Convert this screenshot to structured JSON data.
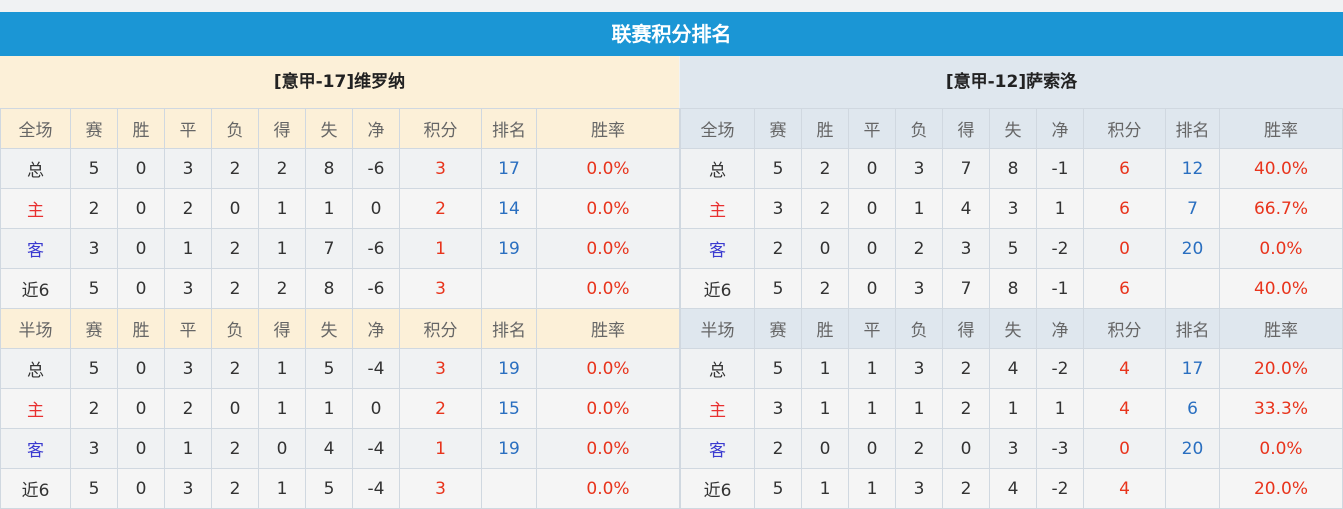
{
  "title": "联赛积分排名",
  "teams": [
    {
      "name": "[意甲-17]维罗纳",
      "sections": [
        {
          "header": [
            "全场",
            "赛",
            "胜",
            "平",
            "负",
            "得",
            "失",
            "净",
            "积分",
            "排名",
            "胜率"
          ],
          "rows": [
            [
              "总",
              "5",
              "0",
              "3",
              "2",
              "2",
              "8",
              "-6",
              "3",
              "17",
              "0.0%"
            ],
            [
              "主",
              "2",
              "0",
              "2",
              "0",
              "1",
              "1",
              "0",
              "2",
              "14",
              "0.0%"
            ],
            [
              "客",
              "3",
              "0",
              "1",
              "2",
              "1",
              "7",
              "-6",
              "1",
              "19",
              "0.0%"
            ],
            [
              "近6",
              "5",
              "0",
              "3",
              "2",
              "2",
              "8",
              "-6",
              "3",
              "",
              "0.0%"
            ]
          ]
        },
        {
          "header": [
            "半场",
            "赛",
            "胜",
            "平",
            "负",
            "得",
            "失",
            "净",
            "积分",
            "排名",
            "胜率"
          ],
          "rows": [
            [
              "总",
              "5",
              "0",
              "3",
              "2",
              "1",
              "5",
              "-4",
              "3",
              "19",
              "0.0%"
            ],
            [
              "主",
              "2",
              "0",
              "2",
              "0",
              "1",
              "1",
              "0",
              "2",
              "15",
              "0.0%"
            ],
            [
              "客",
              "3",
              "0",
              "1",
              "2",
              "0",
              "4",
              "-4",
              "1",
              "19",
              "0.0%"
            ],
            [
              "近6",
              "5",
              "0",
              "3",
              "2",
              "1",
              "5",
              "-4",
              "3",
              "",
              "0.0%"
            ]
          ]
        }
      ]
    },
    {
      "name": "[意甲-12]萨索洛",
      "sections": [
        {
          "header": [
            "全场",
            "赛",
            "胜",
            "平",
            "负",
            "得",
            "失",
            "净",
            "积分",
            "排名",
            "胜率"
          ],
          "rows": [
            [
              "总",
              "5",
              "2",
              "0",
              "3",
              "7",
              "8",
              "-1",
              "6",
              "12",
              "40.0%"
            ],
            [
              "主",
              "3",
              "2",
              "0",
              "1",
              "4",
              "3",
              "1",
              "6",
              "7",
              "66.7%"
            ],
            [
              "客",
              "2",
              "0",
              "0",
              "2",
              "3",
              "5",
              "-2",
              "0",
              "20",
              "0.0%"
            ],
            [
              "近6",
              "5",
              "2",
              "0",
              "3",
              "7",
              "8",
              "-1",
              "6",
              "",
              "40.0%"
            ]
          ]
        },
        {
          "header": [
            "半场",
            "赛",
            "胜",
            "平",
            "负",
            "得",
            "失",
            "净",
            "积分",
            "排名",
            "胜率"
          ],
          "rows": [
            [
              "总",
              "5",
              "1",
              "1",
              "3",
              "2",
              "4",
              "-2",
              "4",
              "17",
              "20.0%"
            ],
            [
              "主",
              "3",
              "1",
              "1",
              "1",
              "2",
              "1",
              "1",
              "4",
              "6",
              "33.3%"
            ],
            [
              "客",
              "2",
              "0",
              "0",
              "2",
              "0",
              "3",
              "-3",
              "0",
              "20",
              "0.0%"
            ],
            [
              "近6",
              "5",
              "1",
              "1",
              "3",
              "2",
              "4",
              "-2",
              "4",
              "",
              "20.0%"
            ]
          ]
        }
      ]
    }
  ]
}
